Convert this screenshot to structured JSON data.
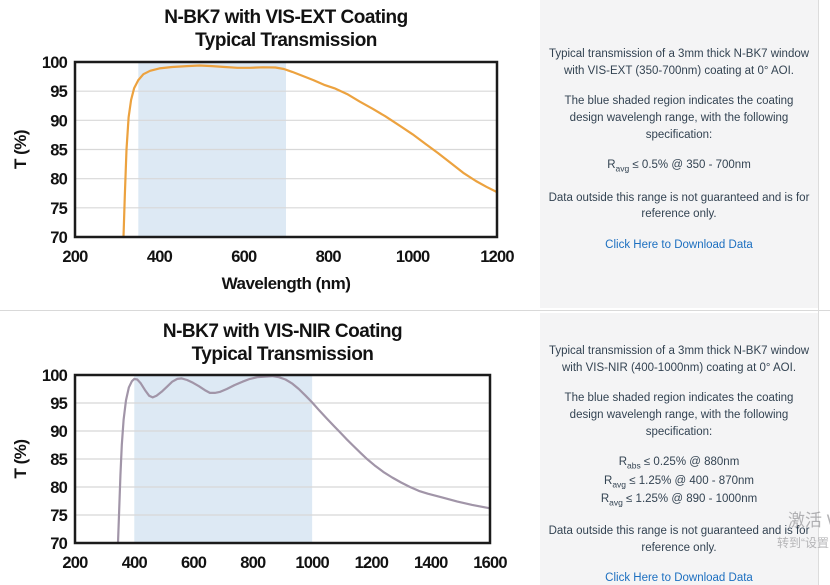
{
  "chart_data": [
    {
      "type": "line",
      "title1": "N-BK7 with VIS-EXT Coating",
      "title2": "Typical Transmission",
      "xlabel": "Wavelength (nm)",
      "ylabel": "T (%)",
      "xlim": [
        200,
        1200
      ],
      "ylim": [
        70,
        100
      ],
      "xticks": [
        200,
        400,
        600,
        800,
        1000,
        1200
      ],
      "yticks": [
        70,
        75,
        80,
        85,
        90,
        95,
        100
      ],
      "shaded_region_nm": [
        350,
        700
      ],
      "grid": "horizontal",
      "line_color": "#ECA23F",
      "shade_color": "#DDE9F4",
      "points": [
        [
          315,
          70
        ],
        [
          318,
          77
        ],
        [
          322,
          85
        ],
        [
          327,
          90.5
        ],
        [
          333,
          93.5
        ],
        [
          340,
          95.5
        ],
        [
          350,
          96.9
        ],
        [
          362,
          97.9
        ],
        [
          378,
          98.5
        ],
        [
          400,
          98.9
        ],
        [
          430,
          99.15
        ],
        [
          465,
          99.3
        ],
        [
          495,
          99.4
        ],
        [
          525,
          99.3
        ],
        [
          555,
          99.15
        ],
        [
          585,
          99.0
        ],
        [
          615,
          99.0
        ],
        [
          645,
          99.1
        ],
        [
          675,
          99.05
        ],
        [
          695,
          98.8
        ],
        [
          715,
          98.3
        ],
        [
          740,
          97.6
        ],
        [
          765,
          96.9
        ],
        [
          790,
          96.1
        ],
        [
          815,
          95.5
        ],
        [
          845,
          94.5
        ],
        [
          875,
          93.2
        ],
        [
          905,
          92.0
        ],
        [
          935,
          90.7
        ],
        [
          965,
          89.3
        ],
        [
          1000,
          87.6
        ],
        [
          1030,
          86.0
        ],
        [
          1060,
          84.4
        ],
        [
          1090,
          82.7
        ],
        [
          1120,
          81.0
        ],
        [
          1150,
          79.6
        ],
        [
          1175,
          78.6
        ],
        [
          1200,
          77.7
        ]
      ]
    },
    {
      "type": "line",
      "title1": "N-BK7 with VIS-NIR Coating",
      "title2": "Typical Transmission",
      "xlabel": "",
      "ylabel": "T (%)",
      "xlim": [
        200,
        1600
      ],
      "ylim": [
        70,
        100
      ],
      "xticks": [
        200,
        400,
        600,
        800,
        1000,
        1200,
        1400,
        1600
      ],
      "yticks": [
        70,
        75,
        80,
        85,
        90,
        95,
        100
      ],
      "shaded_region_nm": [
        400,
        1000
      ],
      "grid": "horizontal",
      "line_color": "#A195A8",
      "shade_color": "#DDE9F4",
      "points": [
        [
          345,
          70
        ],
        [
          349,
          76
        ],
        [
          353,
          82
        ],
        [
          358,
          87.5
        ],
        [
          364,
          92
        ],
        [
          372,
          95.5
        ],
        [
          382,
          97.8
        ],
        [
          392,
          98.9
        ],
        [
          400,
          99.3
        ],
        [
          410,
          99.2
        ],
        [
          422,
          98.5
        ],
        [
          436,
          97.3
        ],
        [
          450,
          96.3
        ],
        [
          462,
          96.0
        ],
        [
          475,
          96.3
        ],
        [
          492,
          97.0
        ],
        [
          510,
          97.9
        ],
        [
          528,
          98.8
        ],
        [
          545,
          99.3
        ],
        [
          560,
          99.4
        ],
        [
          578,
          99.1
        ],
        [
          598,
          98.6
        ],
        [
          618,
          98.0
        ],
        [
          638,
          97.3
        ],
        [
          655,
          96.8
        ],
        [
          672,
          96.8
        ],
        [
          690,
          97.0
        ],
        [
          712,
          97.5
        ],
        [
          738,
          98.2
        ],
        [
          765,
          98.8
        ],
        [
          790,
          99.3
        ],
        [
          815,
          99.6
        ],
        [
          840,
          99.7
        ],
        [
          865,
          99.8
        ],
        [
          888,
          99.6
        ],
        [
          910,
          99.2
        ],
        [
          932,
          98.5
        ],
        [
          955,
          97.5
        ],
        [
          978,
          96.3
        ],
        [
          1000,
          95.1
        ],
        [
          1025,
          93.6
        ],
        [
          1050,
          92.2
        ],
        [
          1075,
          90.8
        ],
        [
          1090,
          90.0
        ],
        [
          1115,
          88.6
        ],
        [
          1140,
          87.3
        ],
        [
          1165,
          86.0
        ],
        [
          1185,
          85.0
        ],
        [
          1210,
          83.9
        ],
        [
          1240,
          82.7
        ],
        [
          1270,
          81.7
        ],
        [
          1300,
          80.8
        ],
        [
          1330,
          80.0
        ],
        [
          1360,
          79.3
        ],
        [
          1390,
          78.8
        ],
        [
          1440,
          78.1
        ],
        [
          1490,
          77.4
        ],
        [
          1540,
          76.8
        ],
        [
          1600,
          76.2
        ]
      ]
    }
  ],
  "panels": [
    {
      "p1": "Typical transmission of a 3mm thick N-BK7 window with VIS-EXT (350-700nm) coating at 0° AOI.",
      "p2": "The blue shaded region indicates the coating design wavelengh range, with the following specification:",
      "specs": [
        {
          "base": "R",
          "sub": "avg",
          "rest": " ≤ 0.5% @ 350 - 700nm"
        }
      ],
      "p3": "Data outside this range is not guaranteed and is for reference only.",
      "link": "Click Here to Download Data"
    },
    {
      "p1": "Typical transmission of a 3mm thick N-BK7 window with VIS-NIR (400-1000nm) coating at 0° AOI.",
      "p2": "The blue shaded region indicates the coating design wavelengh range, with the following specification:",
      "specs": [
        {
          "base": "R",
          "sub": "abs",
          "rest": " ≤ 0.25% @ 880nm"
        },
        {
          "base": "R",
          "sub": "avg",
          "rest": " ≤ 1.25% @ 400 - 870nm"
        },
        {
          "base": "R",
          "sub": "avg",
          "rest": " ≤ 1.25% @ 890 - 1000nm"
        }
      ],
      "p3": "Data outside this range is not guaranteed and is for reference only.",
      "link": "Click Here to Download Data"
    }
  ],
  "watermark": {
    "line1": "激活 W",
    "line2": "转到“设置"
  },
  "theme": {
    "panel_bg": "#F4F4F5",
    "panel_text": "#334352",
    "link_blue": "#1C6FC0",
    "frame_color": "#1B1B1B",
    "gridline_color": "#D8D8D8"
  }
}
